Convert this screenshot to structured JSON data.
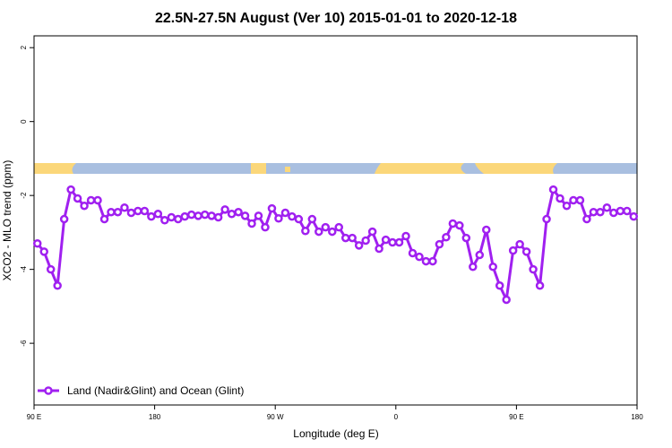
{
  "chart_data": {
    "type": "line",
    "title": "22.5N-27.5N August (Ver 10)   2015-01-01 to 2020-12-18",
    "x_label": "Longitude (deg E)",
    "y_label": "XCO2 - MLO trend (ppm)",
    "x": [
      92.5,
      97.5,
      102.5,
      107.5,
      112.5,
      117.5,
      122.5,
      127.5,
      132.5,
      137.5,
      142.5,
      147.5,
      152.5,
      157.5,
      162.5,
      167.5,
      172.5,
      177.5,
      182.5,
      187.5,
      192.5,
      197.5,
      202.5,
      207.5,
      212.5,
      217.5,
      222.5,
      227.5,
      232.5,
      237.5,
      242.5,
      247.5,
      252.5,
      257.5,
      262.5,
      267.5,
      272.5,
      277.5,
      282.5,
      287.5,
      292.5,
      297.5,
      302.5,
      307.5,
      312.5,
      317.5,
      322.5,
      327.5,
      332.5,
      337.5,
      342.5,
      347.5,
      352.5,
      357.5,
      362.5,
      367.5,
      372.5,
      377.5,
      382.5,
      387.5,
      392.5,
      397.5,
      402.5,
      407.5,
      412.5,
      417.5,
      422.5,
      427.5,
      432.5,
      437.5,
      442.5,
      447.5,
      452.5,
      457.5,
      462.5,
      467.5,
      472.5,
      477.5,
      482.5,
      487.5,
      492.5,
      497.5,
      502.5,
      507.5,
      512.5,
      517.5,
      522.5,
      527.5,
      532.5,
      537.5
    ],
    "series": [
      {
        "name": "Land (Nadir&Glint) and Ocean (Glint)",
        "color": "#a020f0",
        "values": [
          -3.3,
          -3.52,
          -4.0,
          -4.44,
          -2.64,
          -1.84,
          -2.08,
          -2.28,
          -2.13,
          -2.13,
          -2.64,
          -2.45,
          -2.45,
          -2.33,
          -2.47,
          -2.42,
          -2.42,
          -2.57,
          -2.5,
          -2.67,
          -2.59,
          -2.64,
          -2.57,
          -2.52,
          -2.55,
          -2.52,
          -2.55,
          -2.59,
          -2.38,
          -2.5,
          -2.45,
          -2.55,
          -2.76,
          -2.55,
          -2.86,
          -2.35,
          -2.62,
          -2.47,
          -2.57,
          -2.64,
          -2.96,
          -2.64,
          -2.98,
          -2.86,
          -2.98,
          -2.86,
          -3.15,
          -3.15,
          -3.35,
          -3.22,
          -2.98,
          -3.44,
          -3.2,
          -3.27,
          -3.27,
          -3.1,
          -3.56,
          -3.66,
          -3.78,
          -3.78,
          -3.32,
          -3.13,
          -2.76,
          -2.81,
          -3.15,
          -3.93,
          -3.61,
          -2.93,
          -3.93,
          -4.44,
          -4.82,
          -3.49,
          -3.32,
          -3.52,
          -4.0,
          -4.44,
          -2.64,
          -1.84,
          -2.08,
          -2.28,
          -2.13,
          -2.13,
          -2.64,
          -2.45,
          -2.45,
          -2.33,
          -2.47,
          -2.42,
          -2.42,
          -2.57
        ]
      }
    ],
    "xlim": [
      90,
      540
    ],
    "xticks": [
      {
        "value": 90,
        "label": "90 E"
      },
      {
        "value": 180,
        "label": "180"
      },
      {
        "value": 270,
        "label": "90 W"
      },
      {
        "value": 360,
        "label": "0"
      },
      {
        "value": 450,
        "label": "90 E"
      },
      {
        "value": 540,
        "label": "180"
      }
    ],
    "ylim": [
      -7.67,
      2.32
    ],
    "yticks": [
      2,
      0,
      -2,
      -4,
      -6
    ],
    "legend": "bottom-left"
  }
}
